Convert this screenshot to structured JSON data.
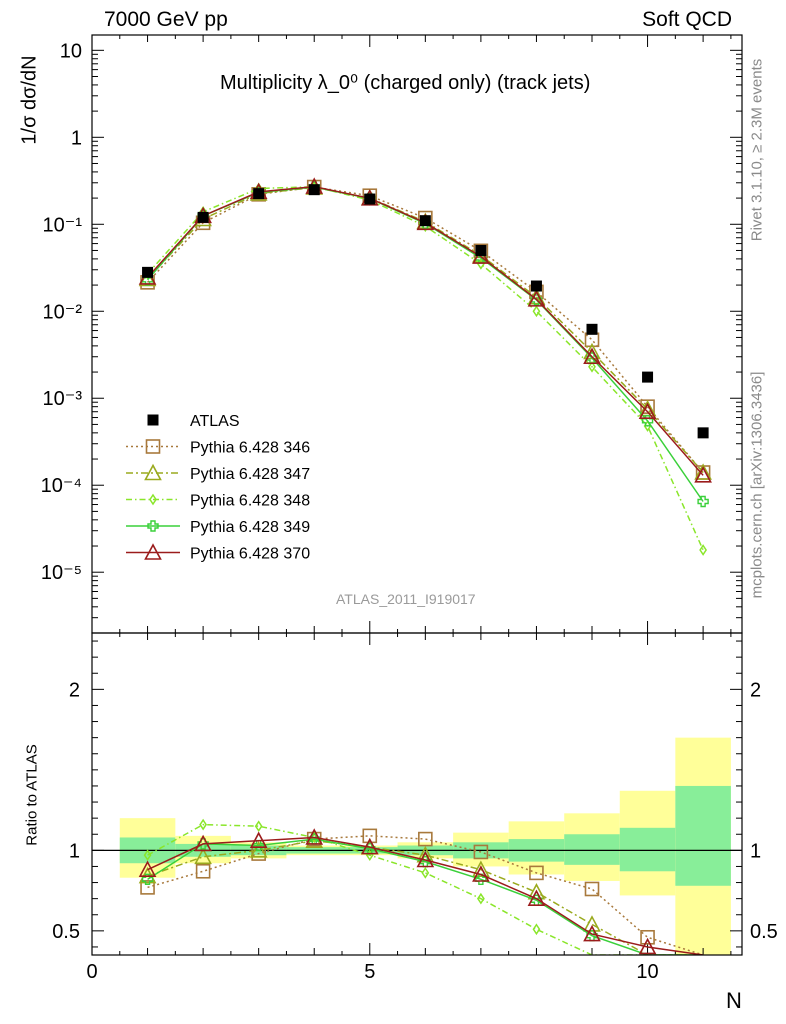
{
  "header": {
    "energy_label": "7000 GeV pp",
    "process_label": "Soft QCD"
  },
  "side": {
    "rivet_label": "Rivet 3.1.10, ≥ 2.3M events",
    "mcplots_label": "mcplots.cern.ch [arXiv:1306.3436]"
  },
  "chart_data": {
    "type": "scatter",
    "title": "Multiplicity λ_0⁰ (charged only) (track jets)",
    "analysis_label": "ATLAS_2011_I919017",
    "xlabel": "N",
    "ylabel": "1/σ dσ/dN",
    "ratio_ylabel": "Ratio to ATLAS",
    "x_range": [
      0,
      11.7
    ],
    "main_y_range": [
      2e-06,
      15
    ],
    "main_y_scale": "log",
    "ratio_y_range": [
      0.35,
      2.35
    ],
    "x_ticks": [
      "0",
      "5",
      "10"
    ],
    "main_y_ticks": [
      "10⁻⁵",
      "10⁻⁴",
      "10⁻³",
      "10⁻²",
      "10⁻¹",
      "1",
      "10"
    ],
    "ratio_y_ticks": [
      "0.5",
      "1",
      "2"
    ],
    "legend_position": "bottom-left",
    "data": {
      "name": "ATLAS",
      "x": [
        1,
        2,
        3,
        4,
        5,
        6,
        7,
        8,
        9,
        10,
        11
      ],
      "y": [
        0.028,
        0.12,
        0.225,
        0.25,
        0.195,
        0.11,
        0.05,
        0.0195,
        0.0062,
        0.00175,
        0.0004
      ]
    },
    "uncertainty_bands": {
      "x_edges": [
        0.5,
        1.5,
        2.5,
        3.5,
        4.5,
        5.5,
        6.5,
        7.5,
        8.5,
        9.5,
        10.5,
        11.5
      ],
      "stat_low": [
        0.92,
        0.96,
        0.97,
        0.98,
        0.98,
        0.97,
        0.95,
        0.93,
        0.91,
        0.87,
        0.78
      ],
      "stat_high": [
        1.08,
        1.04,
        1.03,
        1.02,
        1.02,
        1.03,
        1.05,
        1.07,
        1.1,
        1.14,
        1.4
      ],
      "total_low": [
        0.83,
        0.92,
        0.95,
        0.97,
        0.97,
        0.95,
        0.9,
        0.85,
        0.81,
        0.72,
        0.35
      ],
      "total_high": [
        1.2,
        1.09,
        1.05,
        1.03,
        1.03,
        1.05,
        1.11,
        1.18,
        1.23,
        1.37,
        1.7
      ]
    },
    "series": [
      {
        "name": "Pythia 6.428 346",
        "color": "#a8793c",
        "marker": "square",
        "dash": "2,3",
        "x": [
          1,
          2,
          3,
          4,
          5,
          6,
          7,
          8,
          9,
          10,
          11
        ],
        "y": [
          0.0215,
          0.104,
          0.221,
          0.268,
          0.213,
          0.118,
          0.0495,
          0.0167,
          0.0047,
          0.0008,
          0.00014
        ],
        "ratio": [
          0.77,
          0.87,
          0.98,
          1.07,
          1.09,
          1.07,
          0.99,
          0.86,
          0.76,
          0.46,
          0.35
        ]
      },
      {
        "name": "Pythia 6.428 347",
        "color": "#9aaa1e",
        "marker": "triangle",
        "dash": "7,3,2,3",
        "x": [
          1,
          2,
          3,
          4,
          5,
          6,
          7,
          8,
          9,
          10,
          11
        ],
        "y": [
          0.0235,
          0.115,
          0.226,
          0.265,
          0.2,
          0.107,
          0.044,
          0.0145,
          0.0034,
          0.00075,
          0.00014
        ],
        "ratio": [
          0.84,
          0.96,
          1.0,
          1.06,
          1.02,
          0.97,
          0.88,
          0.74,
          0.54,
          0.35,
          0.35
        ]
      },
      {
        "name": "Pythia 6.428 348",
        "color": "#8ae62a",
        "marker": "diamond",
        "dash": "6,3,1.5,3",
        "x": [
          1,
          2,
          3,
          4,
          5,
          6,
          7,
          8,
          9,
          10,
          11
        ],
        "y": [
          0.027,
          0.139,
          0.258,
          0.27,
          0.19,
          0.095,
          0.035,
          0.01,
          0.0023,
          0.00048,
          1.8e-05
        ],
        "ratio": [
          0.97,
          1.16,
          1.15,
          1.08,
          0.97,
          0.86,
          0.7,
          0.51,
          0.35,
          0.35,
          0.35
        ]
      },
      {
        "name": "Pythia 6.428 349",
        "color": "#3ad03a",
        "marker": "cross",
        "dash": "",
        "x": [
          1,
          2,
          3,
          4,
          5,
          6,
          7,
          8,
          9,
          10,
          11
        ],
        "y": [
          0.023,
          0.125,
          0.232,
          0.268,
          0.198,
          0.102,
          0.041,
          0.0135,
          0.0029,
          0.00055,
          6.5e-05
        ],
        "ratio": [
          0.82,
          1.04,
          1.03,
          1.07,
          1.01,
          0.93,
          0.82,
          0.69,
          0.47,
          0.35,
          0.35
        ]
      },
      {
        "name": "Pythia 6.428 370",
        "color": "#9b1c1c",
        "marker": "triangle",
        "dash": "",
        "x": [
          1,
          2,
          3,
          4,
          5,
          6,
          7,
          8,
          9,
          10,
          11
        ],
        "y": [
          0.0245,
          0.125,
          0.236,
          0.271,
          0.199,
          0.104,
          0.0425,
          0.0137,
          0.003,
          0.0007,
          0.00013
        ],
        "ratio": [
          0.88,
          1.04,
          1.06,
          1.08,
          1.02,
          0.94,
          0.85,
          0.7,
          0.48,
          0.4,
          0.35
        ]
      }
    ]
  }
}
